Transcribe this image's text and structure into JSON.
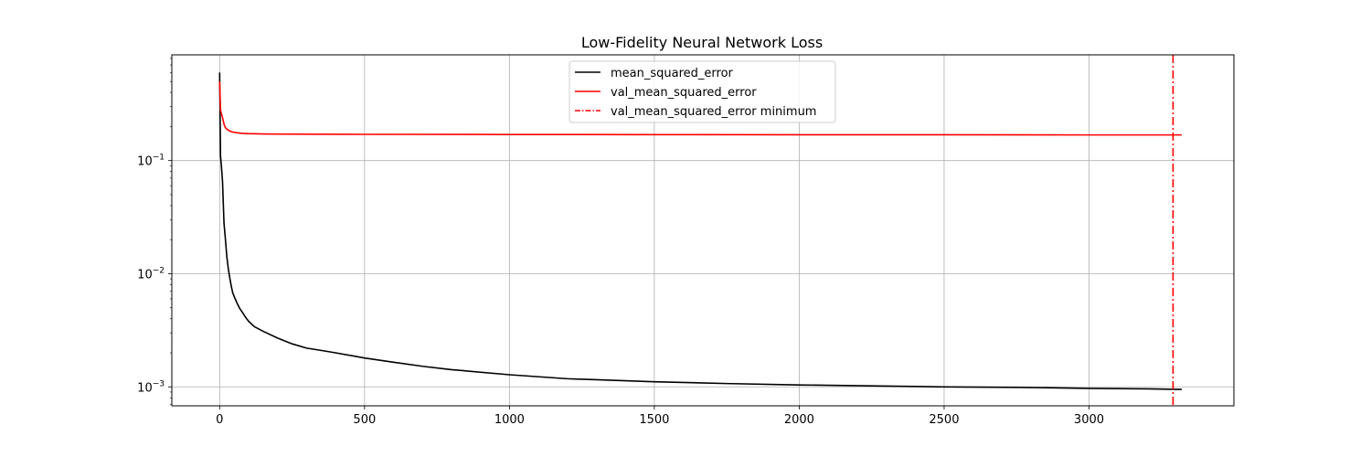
{
  "chart_data": {
    "type": "line",
    "title": "Low-Fidelity Neural Network Loss",
    "xlabel": "",
    "ylabel": "",
    "xlim": [
      -165,
      3500
    ],
    "ylim": [
      0.00068,
      0.86
    ],
    "yscale": "log",
    "grid": true,
    "legend_position": "top-center",
    "x_ticks": [
      0,
      500,
      1000,
      1500,
      2000,
      2500,
      3000
    ],
    "x_tick_labels": [
      "0",
      "500",
      "1000",
      "1500",
      "2000",
      "2500",
      "3000"
    ],
    "y_ticks": [
      0.001,
      0.01,
      0.1
    ],
    "y_tick_labels": [
      {
        "base": "10",
        "exp": "−3"
      },
      {
        "base": "10",
        "exp": "−2"
      },
      {
        "base": "10",
        "exp": "−1"
      }
    ],
    "series": [
      {
        "name": "mean_squared_error",
        "color": "#000000",
        "style": "solid",
        "x": [
          0,
          3,
          6,
          10,
          15,
          20,
          25,
          30,
          35,
          40,
          45,
          50,
          60,
          70,
          80,
          90,
          100,
          120,
          150,
          200,
          250,
          300,
          350,
          400,
          500,
          600,
          700,
          800,
          1000,
          1200,
          1500,
          1750,
          2000,
          2250,
          2500,
          2750,
          3000,
          3200,
          3320
        ],
        "y": [
          0.6,
          0.11,
          0.09,
          0.065,
          0.028,
          0.02,
          0.014,
          0.011,
          0.0092,
          0.0078,
          0.0068,
          0.0063,
          0.0055,
          0.0049,
          0.0045,
          0.0041,
          0.0038,
          0.0034,
          0.0031,
          0.0027,
          0.0024,
          0.0022,
          0.0021,
          0.002,
          0.0018,
          0.00165,
          0.00152,
          0.00142,
          0.00128,
          0.00118,
          0.00111,
          0.00107,
          0.00104,
          0.00102,
          0.001,
          0.00099,
          0.00097,
          0.00096,
          0.00095
        ]
      },
      {
        "name": "val_mean_squared_error",
        "color": "#ff0000",
        "style": "solid",
        "x": [
          0,
          3,
          6,
          10,
          15,
          20,
          30,
          40,
          60,
          80,
          100,
          150,
          200,
          300,
          500,
          1000,
          1500,
          2000,
          2500,
          3000,
          3320
        ],
        "y": [
          0.5,
          0.28,
          0.26,
          0.24,
          0.21,
          0.195,
          0.185,
          0.18,
          0.176,
          0.174,
          0.173,
          0.172,
          0.1715,
          0.171,
          0.1705,
          0.17,
          0.1695,
          0.169,
          0.169,
          0.1685,
          0.1685
        ]
      }
    ],
    "vlines": [
      {
        "name": "val_mean_squared_error minimum",
        "x": 3290,
        "color": "#ff0000",
        "style": "dashdot"
      }
    ]
  }
}
